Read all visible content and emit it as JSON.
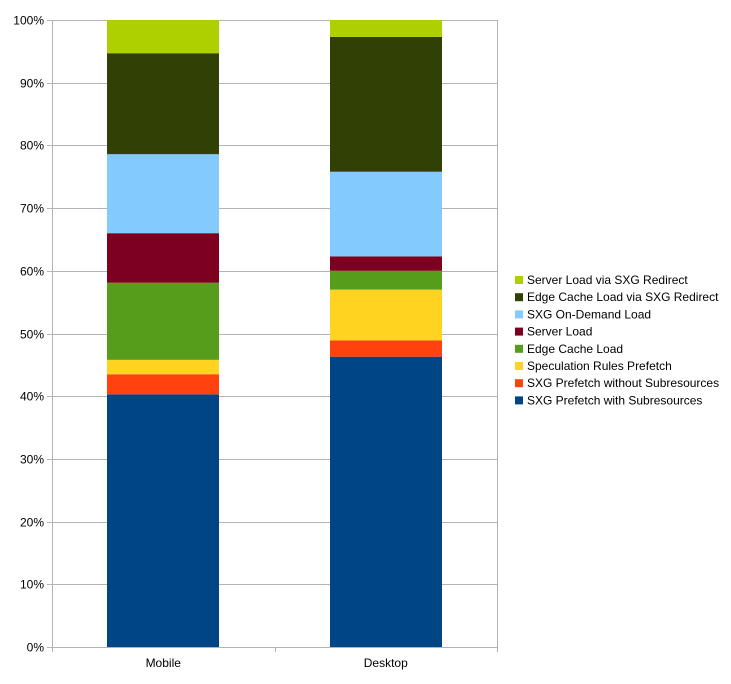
{
  "chart_data": {
    "type": "bar",
    "stacked": true,
    "categories": [
      "Mobile",
      "Desktop"
    ],
    "series": [
      {
        "name": "SXG Prefetch with Subresources",
        "color": "#004586",
        "values": [
          40.3,
          46.3
        ]
      },
      {
        "name": "SXG Prefetch without Subresources",
        "color": "#ff420e",
        "values": [
          3.2,
          2.6
        ]
      },
      {
        "name": "Speculation Rules Prefetch",
        "color": "#ffd320",
        "values": [
          2.3,
          8.1
        ]
      },
      {
        "name": "Edge Cache Load",
        "color": "#579d1c",
        "values": [
          12.3,
          3.0
        ]
      },
      {
        "name": "Server Load",
        "color": "#7e0021",
        "values": [
          7.9,
          2.3
        ]
      },
      {
        "name": "SXG On-Demand Load",
        "color": "#83caff",
        "values": [
          12.6,
          13.5
        ]
      },
      {
        "name": "Edge Cache Load via SXG Redirect",
        "color": "#314004",
        "values": [
          16.1,
          21.5
        ]
      },
      {
        "name": "Server Load via SXG Redirect",
        "color": "#aecf00",
        "values": [
          5.3,
          2.7
        ]
      }
    ],
    "ylim": [
      0,
      100
    ],
    "yticks": [
      "0%",
      "10%",
      "20%",
      "30%",
      "40%",
      "50%",
      "60%",
      "70%",
      "80%",
      "90%",
      "100%"
    ],
    "grid": true,
    "legend": "right",
    "title": "",
    "xlabel": "",
    "ylabel": ""
  }
}
